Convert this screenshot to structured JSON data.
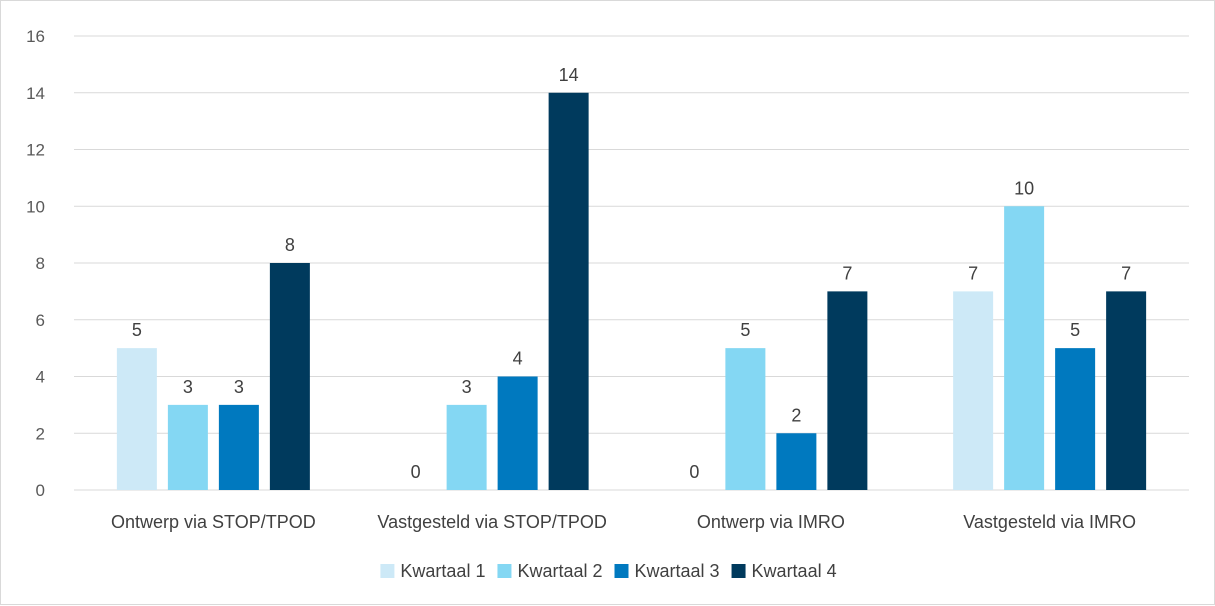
{
  "chart_data": {
    "type": "bar",
    "categories": [
      "Ontwerp via STOP/TPOD",
      "Vastgesteld via STOP/TPOD",
      "Ontwerp via IMRO",
      "Vastgesteld via IMRO"
    ],
    "series": [
      {
        "name": "Kwartaal 1",
        "color": "#cde9f7",
        "values": [
          5,
          0,
          0,
          7
        ]
      },
      {
        "name": "Kwartaal 2",
        "color": "#84d7f3",
        "values": [
          3,
          3,
          5,
          10
        ]
      },
      {
        "name": "Kwartaal 3",
        "color": "#0079bf",
        "values": [
          3,
          4,
          2,
          5
        ]
      },
      {
        "name": "Kwartaal 4",
        "color": "#003a5d",
        "values": [
          8,
          14,
          7,
          7
        ]
      }
    ],
    "ylim": [
      0,
      16
    ],
    "yticks": [
      0,
      2,
      4,
      6,
      8,
      10,
      12,
      14,
      16
    ],
    "grid": true,
    "data_labels": true,
    "legend_position": "bottom",
    "gridline_color": "#d9d9d9"
  }
}
